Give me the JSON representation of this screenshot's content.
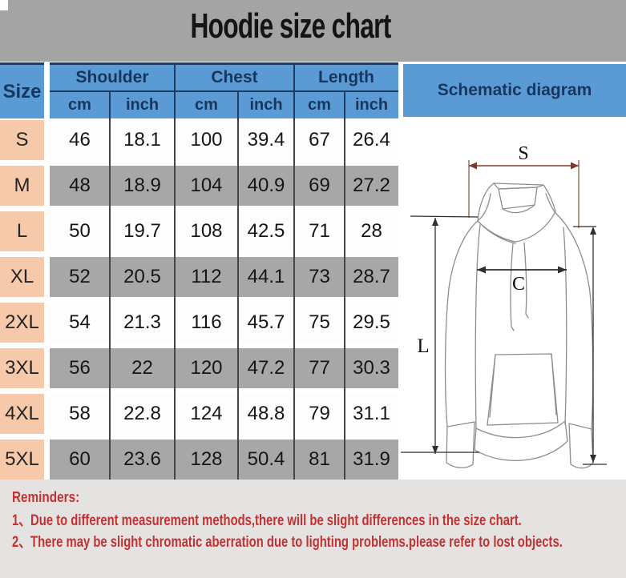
{
  "title": "Hoodie size chart",
  "table": {
    "size_header": "Size",
    "groups": [
      {
        "label": "Shoulder"
      },
      {
        "label": "Chest"
      },
      {
        "label": "Length"
      }
    ],
    "sub_headers": [
      "cm",
      "inch",
      "cm",
      "inch",
      "cm",
      "inch"
    ],
    "rows": [
      {
        "size": "S",
        "values": [
          "46",
          "18.1",
          "100",
          "39.4",
          "67",
          "26.4"
        ]
      },
      {
        "size": "M",
        "values": [
          "48",
          "18.9",
          "104",
          "40.9",
          "69",
          "27.2"
        ]
      },
      {
        "size": "L",
        "values": [
          "50",
          "19.7",
          "108",
          "42.5",
          "71",
          "28"
        ]
      },
      {
        "size": "XL",
        "values": [
          "52",
          "20.5",
          "112",
          "44.1",
          "73",
          "28.7"
        ]
      },
      {
        "size": "2XL",
        "values": [
          "54",
          "21.3",
          "116",
          "45.7",
          "75",
          "29.5"
        ]
      },
      {
        "size": "3XL",
        "values": [
          "56",
          "22",
          "120",
          "47.2",
          "77",
          "30.3"
        ]
      },
      {
        "size": "4XL",
        "values": [
          "58",
          "22.8",
          "124",
          "48.8",
          "79",
          "31.1"
        ]
      },
      {
        "size": "5XL",
        "values": [
          "60",
          "23.6",
          "128",
          "50.4",
          "81",
          "31.9"
        ]
      }
    ]
  },
  "schematic": {
    "header": "Schematic diagram",
    "dimension_labels": {
      "shoulder": "S",
      "chest": "C",
      "length": "L"
    }
  },
  "reminders": {
    "heading": "Reminders:",
    "items": [
      "1、Due to different measurement methods,there will be slight differences in the size chart.",
      "2、There may be slight chromatic aberration due to lighting problems.please refer to lost objects."
    ]
  },
  "colors": {
    "header_blue": "#5b9bd5",
    "header_text": "#17365d",
    "size_cell_peach": "#f6c9ab",
    "row_gray": "#a7a7a7",
    "row_white": "#fdfdfd",
    "title_band_gray": "#a4a4a4",
    "reminder_bg": "#e4e3e1",
    "reminder_red": "#c23232",
    "divider": "#454545"
  }
}
